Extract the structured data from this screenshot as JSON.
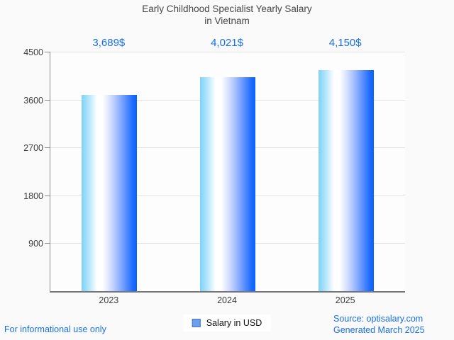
{
  "title": {
    "line1": "Early Childhood Specialist Yearly Salary",
    "line2": "in Vietnam"
  },
  "chart_data": {
    "type": "bar",
    "title": "Early Childhood Specialist Yearly Salary in Vietnam",
    "categories": [
      "2023",
      "2024",
      "2025"
    ],
    "values": [
      3689,
      4021,
      4150
    ],
    "value_labels": [
      "3,689$",
      "4,021$",
      "4,150$"
    ],
    "xlabel": "",
    "ylabel": "",
    "ylim": [
      0,
      4500
    ],
    "yticks": [
      900,
      1800,
      2700,
      3600,
      4500
    ],
    "grid": true,
    "legend_entries": [
      "Salary in USD"
    ],
    "legend_position": "bottom-center"
  },
  "legend": {
    "label": "Salary in USD",
    "swatch_color": "#6d9eeb",
    "swatch_border_color": "#4277c9"
  },
  "footer": {
    "disclaimer": "For informational use only",
    "source_line1": "Source: optisalary.com",
    "source_line2": "Generated March 2025"
  },
  "colors": {
    "background": "#fafafa",
    "accent_blue_text": "#1a6fe8",
    "title_text": "#474747",
    "axis_text": "#3d3d3d",
    "gridline": "#e2e2e2",
    "axis_line": "#8c8c8c",
    "bar_gradient_left": "#7ed2f8",
    "bar_gradient_mid": "#ffffff",
    "bar_gradient_right": "#0a61fe"
  }
}
